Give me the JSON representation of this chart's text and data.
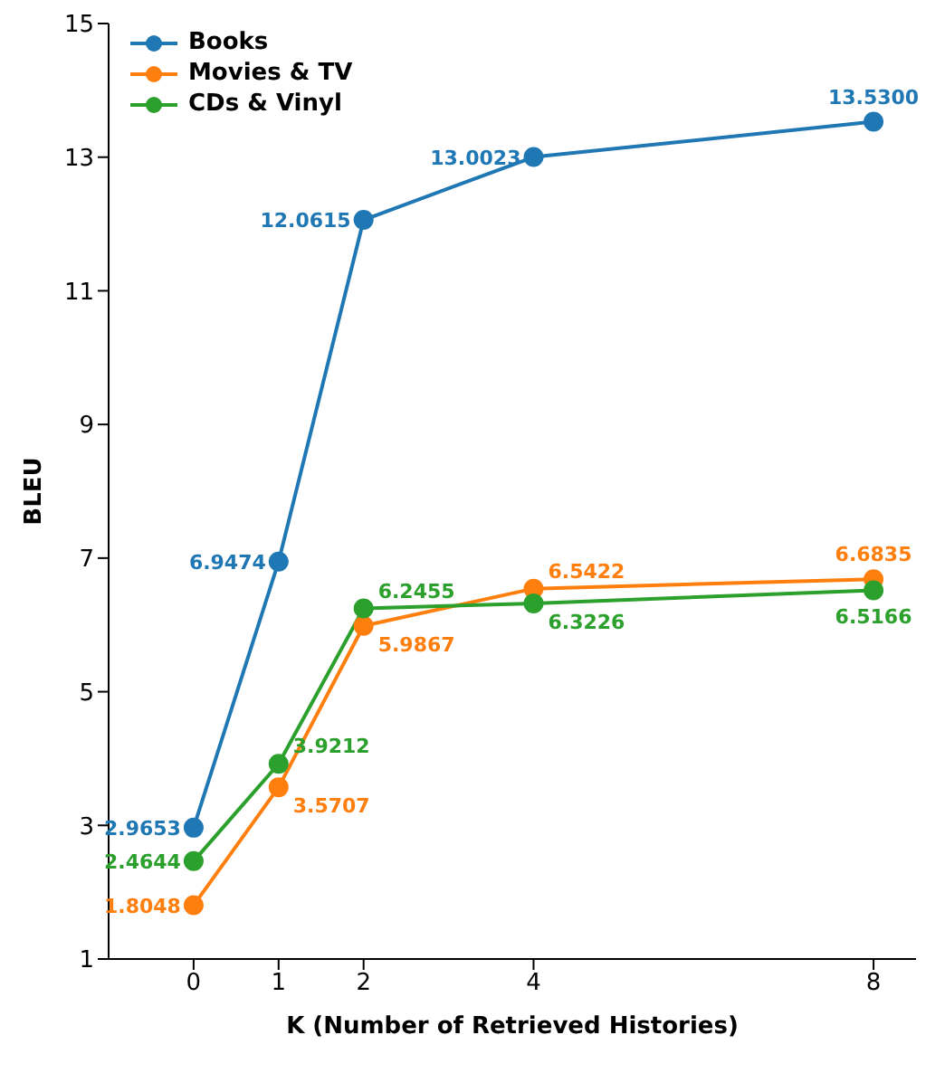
{
  "chart_data": {
    "type": "line",
    "xlabel": "K (Number of Retrieved Histories)",
    "ylabel": "BLEU",
    "x": [
      0,
      1,
      2,
      4,
      8
    ],
    "xlim": [
      -1,
      8.5
    ],
    "xticks": [
      0,
      1,
      2,
      4,
      8
    ],
    "ylim": [
      1,
      15
    ],
    "yticks": [
      1,
      3,
      5,
      7,
      9,
      11,
      13,
      15
    ],
    "grid": false,
    "legend": "top left",
    "marker": "circle",
    "line_style": "solid",
    "series": [
      {
        "name": "Books",
        "color": "#1f77b4",
        "values": [
          2.9653,
          6.9474,
          12.0615,
          13.0023,
          13.53
        ],
        "value_labels": [
          "2.9653",
          "6.9474",
          "12.0615",
          "13.0023",
          "13.5300"
        ]
      },
      {
        "name": "Movies & TV",
        "color": "#ff7f0e",
        "values": [
          1.8048,
          3.5707,
          5.9867,
          6.5422,
          6.6835
        ],
        "value_labels": [
          "1.8048",
          "3.5707",
          "5.9867",
          "6.5422",
          "6.6835"
        ]
      },
      {
        "name": "CDs & Vinyl",
        "color": "#2ca02c",
        "values": [
          2.4644,
          3.9212,
          6.2455,
          6.3226,
          6.5166
        ],
        "value_labels": [
          "2.4644",
          "3.9212",
          "6.2455",
          "6.3226",
          "6.5166"
        ]
      }
    ]
  }
}
